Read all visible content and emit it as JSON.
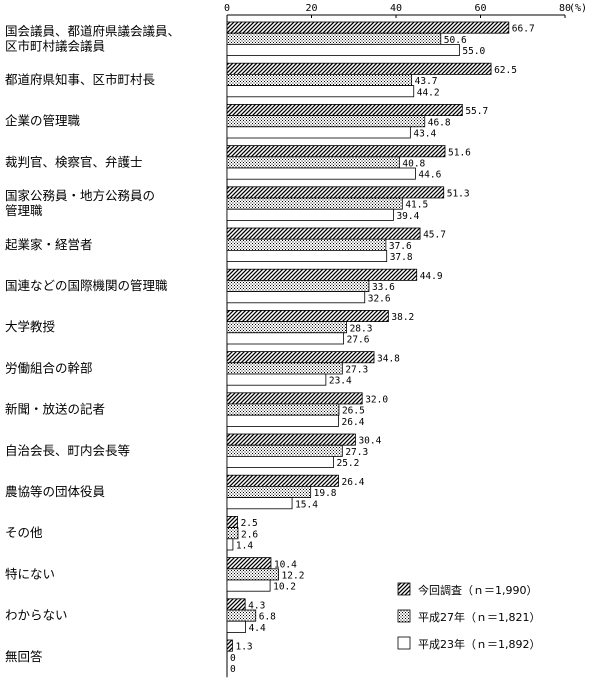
{
  "chart_data": {
    "type": "bar",
    "orientation": "horizontal",
    "unit": "(%)",
    "xlim": [
      0,
      80
    ],
    "xticks": [
      "0",
      "20",
      "40",
      "60",
      "80"
    ],
    "grid": false,
    "legend_position": "bottom-right",
    "categories": [
      [
        "国会議員、都道府県議会議員、",
        "区市町村議会議員"
      ],
      [
        "都道府県知事、区市町村長"
      ],
      [
        "企業の管理職"
      ],
      [
        "裁判官、検察官、弁護士"
      ],
      [
        "国家公務員・地方公務員の",
        "管理職"
      ],
      [
        "起業家・経営者"
      ],
      [
        "国連などの国際機関の管理職"
      ],
      [
        "大学教授"
      ],
      [
        "労働組合の幹部"
      ],
      [
        "新聞・放送の記者"
      ],
      [
        "自治会長、町内会長等"
      ],
      [
        "農協等の団体役員"
      ],
      [
        "その他"
      ],
      [
        "特にない"
      ],
      [
        "わからない"
      ],
      [
        "無回答"
      ]
    ],
    "series": [
      {
        "name": "今回調査（ｎ＝1,990）",
        "pattern": "diagonal",
        "values": [
          66.7,
          62.5,
          55.7,
          51.6,
          51.3,
          45.7,
          44.9,
          38.2,
          34.8,
          32.0,
          30.4,
          26.4,
          2.5,
          10.4,
          4.3,
          1.3
        ],
        "labels": [
          "66.7",
          "62.5",
          "55.7",
          "51.6",
          "51.3",
          "45.7",
          "44.9",
          "38.2",
          "34.8",
          "32.0",
          "30.4",
          "26.4",
          "2.5",
          "10.4",
          "4.3",
          "1.3"
        ]
      },
      {
        "name": "平成27年（ｎ＝1,821）",
        "pattern": "dots",
        "values": [
          50.6,
          43.7,
          46.8,
          40.8,
          41.5,
          37.6,
          33.6,
          28.3,
          27.3,
          26.5,
          27.3,
          19.8,
          2.6,
          12.2,
          6.8,
          0
        ],
        "labels": [
          "50.6",
          "43.7",
          "46.8",
          "40.8",
          "41.5",
          "37.6",
          "33.6",
          "28.3",
          "27.3",
          "26.5",
          "27.3",
          "19.8",
          "2.6",
          "12.2",
          "6.8",
          "0"
        ]
      },
      {
        "name": "平成23年（ｎ＝1,892）",
        "pattern": "white",
        "values": [
          55.0,
          44.2,
          43.4,
          44.6,
          39.4,
          37.8,
          32.6,
          27.6,
          23.4,
          26.4,
          25.2,
          15.4,
          1.4,
          10.2,
          4.4,
          0
        ],
        "labels": [
          "55.0",
          "44.2",
          "43.4",
          "44.6",
          "39.4",
          "37.8",
          "32.6",
          "27.6",
          "23.4",
          "26.4",
          "25.2",
          "15.4",
          "1.4",
          "10.2",
          "4.4",
          "0"
        ]
      }
    ]
  }
}
